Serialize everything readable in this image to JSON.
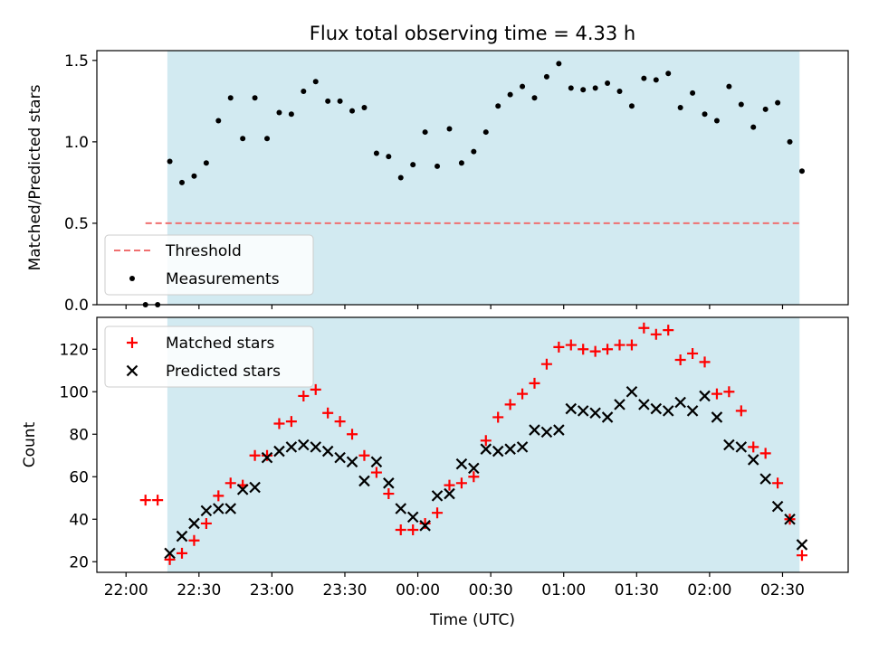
{
  "figure": {
    "title": "Flux total observing time = 4.33 h"
  },
  "colors": {
    "shade": "#add8e6",
    "threshold": "#f07070",
    "matched": "#ff0000",
    "predicted": "#000000",
    "measurement": "#000000"
  },
  "chart_data": [
    {
      "type": "scatter",
      "ylabel": "Matched/Predicted stars",
      "xlabel": "",
      "xlim": [
        -0.2,
        4.95
      ],
      "ylim": [
        0,
        1.56
      ],
      "yticks": [
        0.0,
        0.5,
        1.0,
        1.5
      ],
      "ytick_labels": [
        "0.0",
        "0.5",
        "1.0",
        "1.5"
      ],
      "shaded_interval": [
        0.2833,
        4.6167
      ],
      "threshold": {
        "name": "Threshold",
        "y": 0.5,
        "x_range": [
          0.1333,
          4.6167
        ]
      },
      "legend": {
        "position": "lower-left",
        "entries": [
          "Threshold",
          "Measurements"
        ]
      },
      "series": [
        {
          "name": "Measurements",
          "x": [
            0.1333,
            0.2167,
            0.3,
            0.3833,
            0.4667,
            0.55,
            0.6333,
            0.7167,
            0.8,
            0.8833,
            0.9667,
            1.05,
            1.1333,
            1.2167,
            1.3,
            1.3833,
            1.4667,
            1.55,
            1.6333,
            1.7167,
            1.8,
            1.8833,
            1.9667,
            2.05,
            2.1333,
            2.2167,
            2.3,
            2.3833,
            2.4667,
            2.55,
            2.6333,
            2.7167,
            2.8,
            2.8833,
            2.9667,
            3.05,
            3.1333,
            3.2167,
            3.3,
            3.3833,
            3.4667,
            3.55,
            3.6333,
            3.7167,
            3.8,
            3.8833,
            3.9667,
            4.05,
            4.1333,
            4.2167,
            4.3,
            4.3833,
            4.4667,
            4.55,
            4.6333
          ],
          "y": [
            0.0,
            0.0,
            0.88,
            0.75,
            0.79,
            0.87,
            1.13,
            1.27,
            1.02,
            1.27,
            1.02,
            1.18,
            1.17,
            1.31,
            1.37,
            1.25,
            1.25,
            1.19,
            1.21,
            0.93,
            0.91,
            0.78,
            0.86,
            1.06,
            0.85,
            1.08,
            0.87,
            0.94,
            1.06,
            1.22,
            1.29,
            1.34,
            1.27,
            1.4,
            1.48,
            1.33,
            1.32,
            1.33,
            1.36,
            1.31,
            1.22,
            1.39,
            1.38,
            1.42,
            1.21,
            1.3,
            1.17,
            1.13,
            1.34,
            1.23,
            1.09,
            1.2,
            1.24,
            1.0,
            0.82
          ]
        }
      ]
    },
    {
      "type": "scatter",
      "ylabel": "Count",
      "xlabel": "Time (UTC)",
      "xlim": [
        -0.2,
        4.95
      ],
      "ylim": [
        15,
        135
      ],
      "yticks": [
        20,
        40,
        60,
        80,
        100,
        120
      ],
      "ytick_labels": [
        "20",
        "40",
        "60",
        "80",
        "100",
        "120"
      ],
      "xticks": [
        0,
        0.5,
        1.0,
        1.5,
        2.0,
        2.5,
        3.0,
        3.5,
        4.0,
        4.5
      ],
      "xtick_labels": [
        "22:00",
        "22:30",
        "23:00",
        "23:30",
        "00:00",
        "00:30",
        "01:00",
        "01:30",
        "02:00",
        "02:30"
      ],
      "shaded_interval": [
        0.2833,
        4.6167
      ],
      "legend": {
        "position": "upper-left",
        "entries": [
          "Matched stars",
          "Predicted stars"
        ]
      },
      "series": [
        {
          "name": "Matched stars",
          "marker": "+",
          "x": [
            0.1333,
            0.2167,
            0.3,
            0.3833,
            0.4667,
            0.55,
            0.6333,
            0.7167,
            0.8,
            0.8833,
            0.9667,
            1.05,
            1.1333,
            1.2167,
            1.3,
            1.3833,
            1.4667,
            1.55,
            1.6333,
            1.7167,
            1.8,
            1.8833,
            1.9667,
            2.05,
            2.1333,
            2.2167,
            2.3,
            2.3833,
            2.4667,
            2.55,
            2.6333,
            2.7167,
            2.8,
            2.8833,
            2.9667,
            3.05,
            3.1333,
            3.2167,
            3.3,
            3.3833,
            3.4667,
            3.55,
            3.6333,
            3.7167,
            3.8,
            3.8833,
            3.9667,
            4.05,
            4.1333,
            4.2167,
            4.3,
            4.3833,
            4.4667,
            4.55,
            4.6333
          ],
          "y": [
            49,
            49,
            21,
            24,
            30,
            38,
            51,
            57,
            56,
            70,
            70,
            85,
            86,
            98,
            101,
            90,
            86,
            80,
            70,
            62,
            52,
            35,
            35,
            38,
            43,
            56,
            57,
            60,
            77,
            88,
            94,
            99,
            104,
            113,
            121,
            122,
            120,
            119,
            120,
            122,
            122,
            130,
            127,
            129,
            115,
            118,
            114,
            99,
            100,
            91,
            74,
            71,
            57,
            40,
            23
          ]
        },
        {
          "name": "Predicted stars",
          "marker": "x",
          "x": [
            0.3,
            0.3833,
            0.4667,
            0.55,
            0.6333,
            0.7167,
            0.8,
            0.8833,
            0.9667,
            1.05,
            1.1333,
            1.2167,
            1.3,
            1.3833,
            1.4667,
            1.55,
            1.6333,
            1.7167,
            1.8,
            1.8833,
            1.9667,
            2.05,
            2.1333,
            2.2167,
            2.3,
            2.3833,
            2.4667,
            2.55,
            2.6333,
            2.7167,
            2.8,
            2.8833,
            2.9667,
            3.05,
            3.1333,
            3.2167,
            3.3,
            3.3833,
            3.4667,
            3.55,
            3.6333,
            3.7167,
            3.8,
            3.8833,
            3.9667,
            4.05,
            4.1333,
            4.2167,
            4.3,
            4.3833,
            4.4667,
            4.55,
            4.6333
          ],
          "y": [
            24,
            32,
            38,
            44,
            45,
            45,
            54,
            55,
            69,
            72,
            74,
            75,
            74,
            72,
            69,
            67,
            58,
            67,
            57,
            45,
            41,
            37,
            51,
            52,
            66,
            64,
            73,
            72,
            73,
            74,
            82,
            81,
            82,
            92,
            91,
            90,
            88,
            94,
            100,
            94,
            92,
            91,
            95,
            91,
            98,
            88,
            75,
            74,
            68,
            59,
            46,
            40,
            28
          ]
        }
      ]
    }
  ]
}
